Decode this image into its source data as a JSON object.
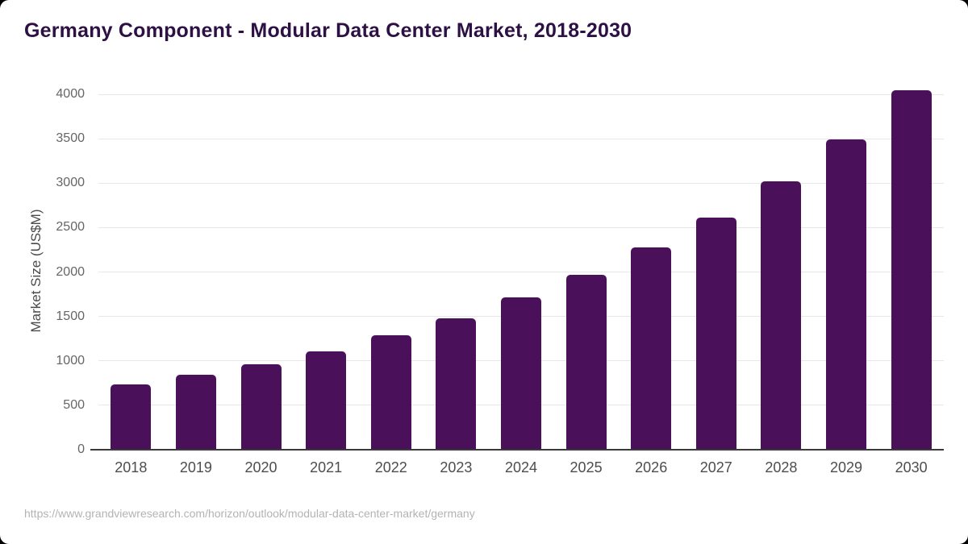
{
  "chart_data": {
    "type": "bar",
    "title": "Germany Component - Modular Data Center Market, 2018-2030",
    "ylabel": "Market Size (US$M)",
    "xlabel": "",
    "categories": [
      "2018",
      "2019",
      "2020",
      "2021",
      "2022",
      "2023",
      "2024",
      "2025",
      "2026",
      "2027",
      "2028",
      "2029",
      "2030"
    ],
    "values": [
      735,
      840,
      960,
      1110,
      1285,
      1480,
      1710,
      1965,
      2275,
      2615,
      3025,
      3495,
      4050
    ],
    "ylim": [
      0,
      4000
    ],
    "ytick_step": 500,
    "yticks": [
      0,
      500,
      1000,
      1500,
      2000,
      2500,
      3000,
      3500,
      4000
    ],
    "grid": true,
    "legend": false,
    "bar_color": "#4a1059"
  },
  "footer": {
    "source_url": "https://www.grandviewresearch.com/horizon/outlook/modular-data-center-market/germany"
  },
  "colors": {
    "title": "#2d1044",
    "bar": "#4a1059",
    "gridline": "#e7e7e7",
    "axis_line": "#3a3a3a",
    "tick_text": "#666666",
    "source_text": "#b3b3b3",
    "background": "#ffffff"
  }
}
